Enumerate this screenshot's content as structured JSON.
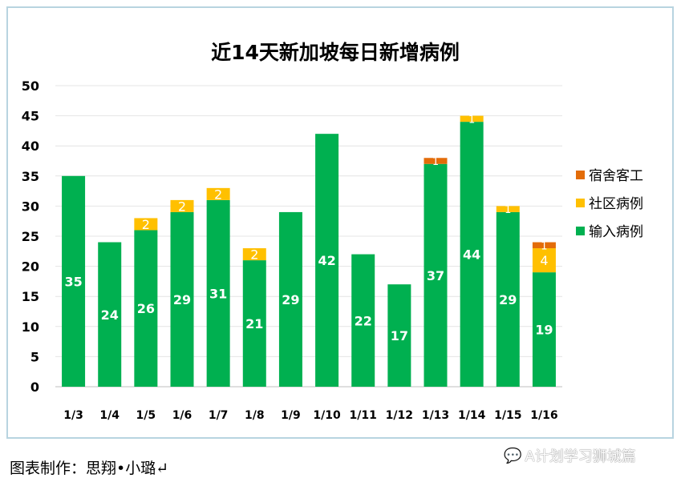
{
  "chart_data": {
    "type": "bar",
    "stacked": true,
    "title": "近14天新加坡每日新增病例",
    "categories": [
      "1/3",
      "1/4",
      "1/5",
      "1/6",
      "1/7",
      "1/8",
      "1/9",
      "1/10",
      "1/11",
      "1/12",
      "1/13",
      "1/14",
      "1/15",
      "1/16"
    ],
    "series": [
      {
        "name": "输入病例",
        "color": "#00b050",
        "values": [
          35,
          24,
          26,
          29,
          31,
          21,
          29,
          42,
          22,
          17,
          37,
          44,
          29,
          19
        ]
      },
      {
        "name": "社区病例",
        "color": "#ffc000",
        "values": [
          0,
          0,
          2,
          2,
          2,
          2,
          0,
          0,
          0,
          0,
          0,
          1,
          1,
          4
        ]
      },
      {
        "name": "宿舍客工",
        "color": "#e36c09",
        "values": [
          0,
          0,
          0,
          0,
          0,
          0,
          0,
          0,
          0,
          0,
          1,
          0,
          0,
          1
        ]
      }
    ],
    "ylim": [
      0,
      50
    ],
    "yticks": [
      0,
      5,
      10,
      15,
      20,
      25,
      30,
      35,
      40,
      45,
      50
    ],
    "grid": true,
    "legend": "right",
    "xlabel": "",
    "ylabel": ""
  },
  "footer": "图表制作：思翔•小璐↵",
  "watermark": "A计划学习狮城篇"
}
